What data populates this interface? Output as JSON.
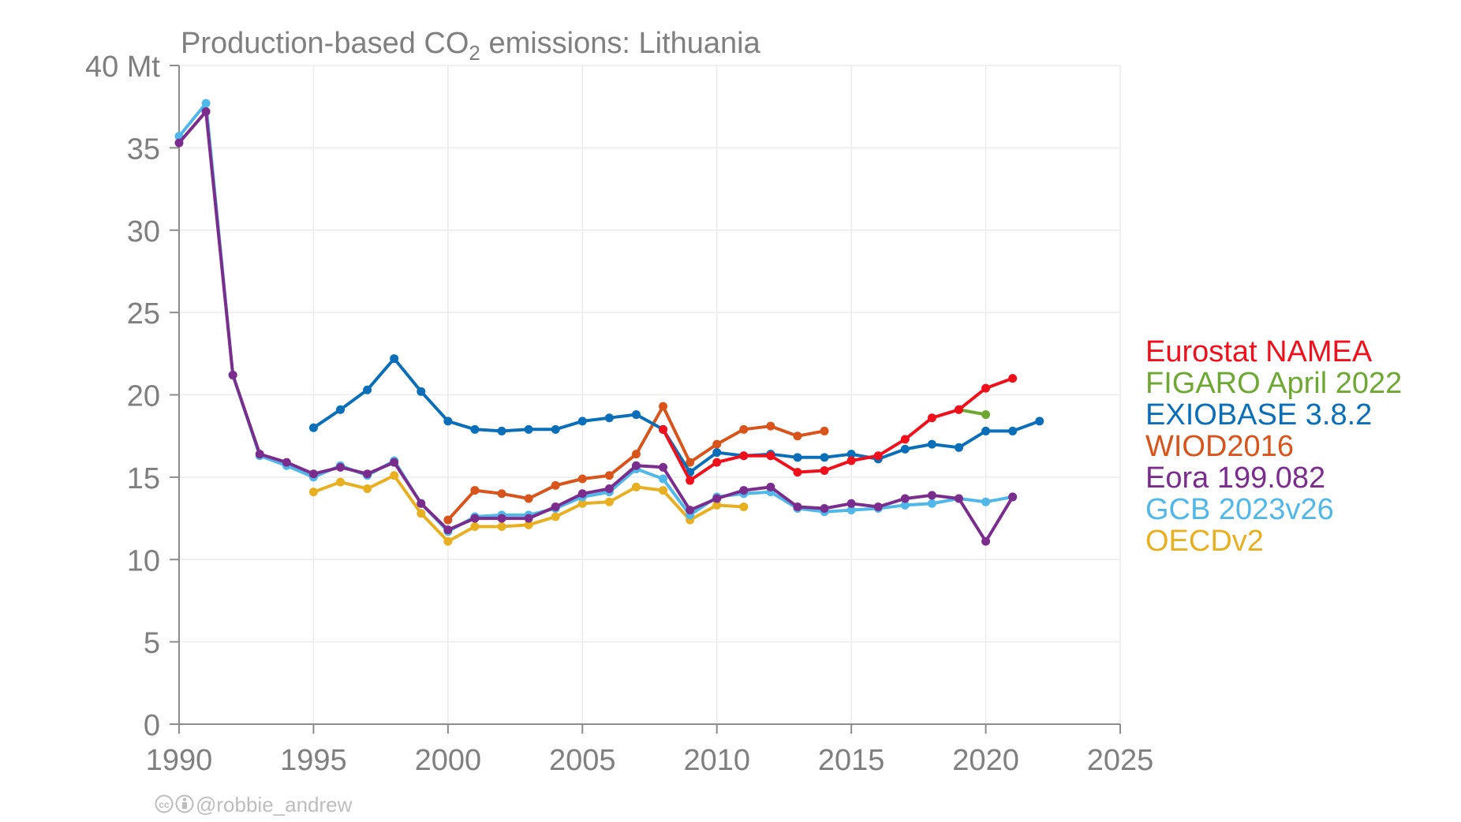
{
  "chart_data": {
    "type": "line",
    "title": {
      "main": "Production-based CO",
      "subscript": "2",
      "rest": " emissions: Lithuania"
    },
    "xlim": [
      1990,
      2025
    ],
    "ylim": [
      0,
      40
    ],
    "x_ticks": [
      {
        "value": 1990,
        "label": "1990"
      },
      {
        "value": 1995,
        "label": "1995"
      },
      {
        "value": 2000,
        "label": "2000"
      },
      {
        "value": 2005,
        "label": "2005"
      },
      {
        "value": 2010,
        "label": "2010"
      },
      {
        "value": 2015,
        "label": "2015"
      },
      {
        "value": 2020,
        "label": "2020"
      },
      {
        "value": 2025,
        "label": "2025"
      }
    ],
    "y_ticks": [
      {
        "value": 0,
        "label": "0"
      },
      {
        "value": 5,
        "label": "5"
      },
      {
        "value": 10,
        "label": "10"
      },
      {
        "value": 15,
        "label": "15"
      },
      {
        "value": 20,
        "label": "20"
      },
      {
        "value": 25,
        "label": "25"
      },
      {
        "value": 30,
        "label": "30"
      },
      {
        "value": 35,
        "label": "35"
      },
      {
        "value": 40,
        "label": "40 Mt"
      }
    ],
    "grid": true,
    "legend": "right",
    "series": [
      {
        "name": "OECDv2",
        "color": "#e8b020",
        "x": [
          1995,
          1996,
          1997,
          1998,
          1999,
          2000,
          2001,
          2002,
          2003,
          2004,
          2005,
          2006,
          2007,
          2008,
          2009,
          2010,
          2011
        ],
        "values": [
          14.1,
          14.7,
          14.3,
          15.1,
          12.8,
          11.1,
          12.0,
          12.0,
          12.1,
          12.6,
          13.4,
          13.5,
          14.4,
          14.2,
          12.4,
          13.3,
          13.2
        ]
      },
      {
        "name": "GCB 2023v26",
        "color": "#4fb8e8",
        "x": [
          1990,
          1991,
          1992,
          1993,
          1994,
          1995,
          1996,
          1997,
          1998,
          1999,
          2000,
          2001,
          2002,
          2003,
          2004,
          2005,
          2006,
          2007,
          2008,
          2009,
          2010,
          2011,
          2012,
          2013,
          2014,
          2015,
          2016,
          2017,
          2018,
          2019,
          2020,
          2021
        ],
        "values": [
          35.7,
          37.7,
          21.2,
          16.3,
          15.7,
          15.0,
          15.7,
          15.1,
          16.0,
          13.4,
          11.7,
          12.6,
          12.7,
          12.7,
          13.1,
          13.8,
          14.1,
          15.5,
          14.9,
          12.7,
          13.8,
          14.0,
          14.1,
          13.1,
          12.9,
          13.0,
          13.1,
          13.3,
          13.4,
          13.7,
          13.5,
          13.8
        ]
      },
      {
        "name": "Eora 199.082",
        "color": "#7b2d8e",
        "x": [
          1990,
          1991,
          1992,
          1993,
          1994,
          1995,
          1996,
          1997,
          1998,
          1999,
          2000,
          2001,
          2002,
          2003,
          2004,
          2005,
          2006,
          2007,
          2008,
          2009,
          2010,
          2011,
          2012,
          2013,
          2014,
          2015,
          2016,
          2017,
          2018,
          2019,
          2020,
          2021
        ],
        "values": [
          35.3,
          37.2,
          21.2,
          16.4,
          15.9,
          15.2,
          15.6,
          15.2,
          15.9,
          13.4,
          11.8,
          12.5,
          12.5,
          12.5,
          13.2,
          14.0,
          14.3,
          15.7,
          15.6,
          13.0,
          13.7,
          14.2,
          14.4,
          13.2,
          13.1,
          13.4,
          13.2,
          13.7,
          13.9,
          13.7,
          11.1,
          13.8
        ]
      },
      {
        "name": "WIOD2016",
        "color": "#d8541a",
        "x": [
          2000,
          2001,
          2002,
          2003,
          2004,
          2005,
          2006,
          2007,
          2008,
          2009,
          2010,
          2011,
          2012,
          2013,
          2014
        ],
        "values": [
          12.4,
          14.2,
          14.0,
          13.7,
          14.5,
          14.9,
          15.1,
          16.4,
          19.3,
          15.9,
          17.0,
          17.9,
          18.1,
          17.5,
          17.8
        ]
      },
      {
        "name": "EXIOBASE 3.8.2",
        "color": "#0a6fb8",
        "x": [
          1995,
          1996,
          1997,
          1998,
          1999,
          2000,
          2001,
          2002,
          2003,
          2004,
          2005,
          2006,
          2007,
          2008,
          2009,
          2010,
          2011,
          2012,
          2013,
          2014,
          2015,
          2016,
          2017,
          2018,
          2019,
          2020,
          2021,
          2022
        ],
        "values": [
          18.0,
          19.1,
          20.3,
          22.2,
          20.2,
          18.4,
          17.9,
          17.8,
          17.9,
          17.9,
          18.4,
          18.6,
          18.8,
          17.9,
          15.3,
          16.5,
          16.3,
          16.4,
          16.2,
          16.2,
          16.4,
          16.1,
          16.7,
          17.0,
          16.8,
          17.8,
          17.8,
          18.4
        ]
      },
      {
        "name": "FIGARO April 2022",
        "color": "#6ea832",
        "x": [
          2019,
          2020
        ],
        "values": [
          19.1,
          18.8
        ]
      },
      {
        "name": "Eurostat NAMEA",
        "color": "#f0101c",
        "x": [
          2008,
          2009,
          2010,
          2011,
          2012,
          2013,
          2014,
          2015,
          2016,
          2017,
          2018,
          2019,
          2020,
          2021
        ],
        "values": [
          17.9,
          14.8,
          15.9,
          16.3,
          16.3,
          15.3,
          15.4,
          16.0,
          16.3,
          17.3,
          18.6,
          19.1,
          20.4,
          21.0
        ]
      }
    ],
    "legend_order": [
      "Eurostat NAMEA",
      "FIGARO April 2022",
      "EXIOBASE 3.8.2",
      "WIOD2016",
      "Eora 199.082",
      "GCB 2023v26",
      "OECDv2"
    ]
  },
  "credit": {
    "icons": [
      "cc-icon",
      "by-icon"
    ],
    "handle": "@robbie_andrew"
  }
}
